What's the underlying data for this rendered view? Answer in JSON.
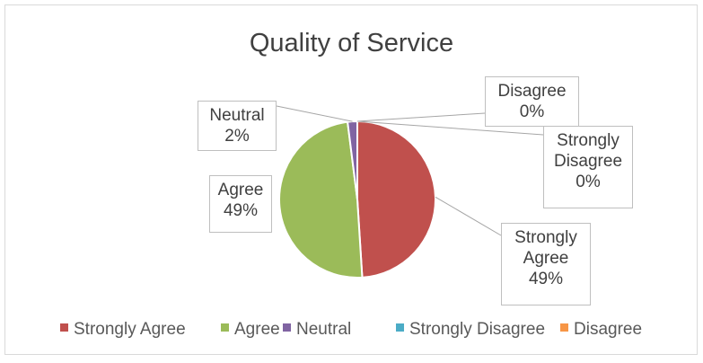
{
  "chart_data": {
    "type": "pie",
    "title": "Quality of Service",
    "categories": [
      "Strongly Agree",
      "Agree",
      "Neutral",
      "Strongly Disagree",
      "Disagree"
    ],
    "values": [
      49,
      49,
      2,
      0,
      0
    ],
    "value_labels": [
      "49%",
      "49%",
      "2%",
      "0%",
      "0%"
    ],
    "colors": [
      "#c0504d",
      "#9bbb59",
      "#8064a2",
      "#4bacc6",
      "#f79646"
    ],
    "legend": "bottom"
  }
}
